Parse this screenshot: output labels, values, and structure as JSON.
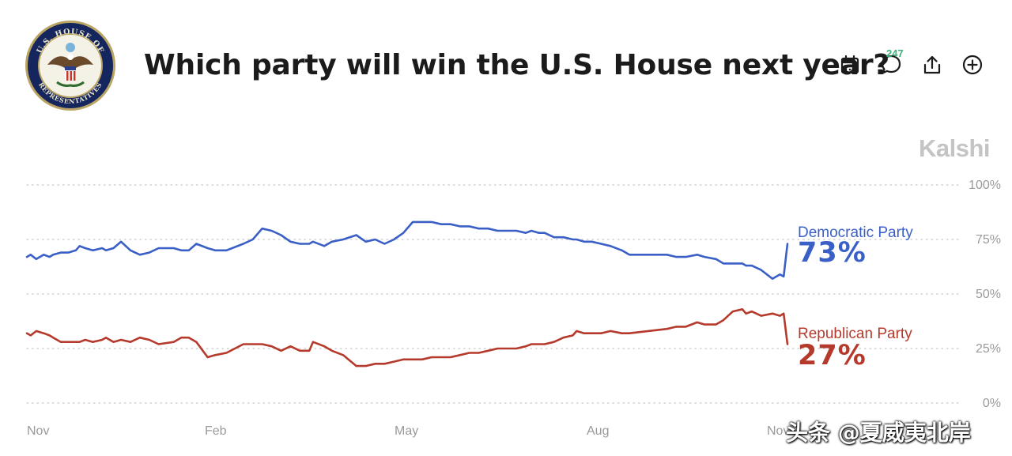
{
  "header": {
    "title": "Which party will win the U.S. House next year?",
    "comment_count": "247",
    "seal_text": "U.S. HOUSE OF REPRESENTATIVES",
    "icons": [
      "calendar-icon",
      "comment-icon",
      "share-icon",
      "add-icon"
    ]
  },
  "brand": "Kalshi",
  "watermark": "头条 @夏威夷北岸",
  "colors": {
    "democratic": "#3a5fc6",
    "republican": "#b53a2c",
    "grid": "#c8c8c8",
    "tick": "#9a9a9a"
  },
  "chart_data": {
    "type": "line",
    "x_ticks": [
      "Nov",
      "Feb",
      "May",
      "Aug",
      "Nov"
    ],
    "y_ticks": [
      "100%",
      "75%",
      "50%",
      "25%",
      "0%"
    ],
    "ylim": [
      0,
      100
    ],
    "x": [
      0,
      2,
      5,
      9,
      12,
      14,
      18,
      22,
      26,
      28,
      31,
      35,
      40,
      42,
      46,
      50,
      55,
      60,
      65,
      70,
      78,
      82,
      86,
      90,
      96,
      100,
      106,
      115,
      120,
      125,
      130,
      135,
      140,
      145,
      150,
      152,
      158,
      162,
      168,
      175,
      180,
      185,
      190,
      195,
      200,
      205,
      210,
      215,
      220,
      225,
      230,
      235,
      240,
      245,
      250,
      255,
      260,
      265,
      268,
      272,
      275,
      280,
      285,
      290,
      292,
      296,
      300,
      305,
      310,
      316,
      320,
      330,
      340,
      345,
      350,
      356,
      360,
      366,
      370,
      375,
      380,
      382,
      385,
      390,
      396,
      400,
      402,
      404
    ],
    "series": [
      {
        "name": "Democratic Party",
        "label": "73%",
        "values": [
          67,
          68,
          66,
          68,
          67,
          68,
          69,
          69,
          70,
          72,
          71,
          70,
          71,
          70,
          71,
          74,
          70,
          68,
          69,
          71,
          71,
          70,
          70,
          73,
          71,
          70,
          70,
          73,
          75,
          80,
          79,
          77,
          74,
          73,
          73,
          74,
          72,
          74,
          75,
          77,
          74,
          75,
          73,
          75,
          78,
          83,
          83,
          83,
          82,
          82,
          81,
          81,
          80,
          80,
          79,
          79,
          79,
          78,
          79,
          78,
          78,
          76,
          76,
          75,
          75,
          74,
          74,
          73,
          72,
          70,
          68,
          68,
          68,
          67,
          67,
          68,
          67,
          66,
          64,
          64,
          64,
          63,
          63,
          61,
          57,
          59,
          58,
          73
        ]
      },
      {
        "name": "Republican Party",
        "label": "27%",
        "values": [
          32,
          31,
          33,
          32,
          31,
          30,
          28,
          28,
          28,
          28,
          29,
          28,
          29,
          30,
          28,
          29,
          28,
          30,
          29,
          27,
          28,
          30,
          30,
          28,
          21,
          22,
          23,
          27,
          27,
          27,
          26,
          24,
          26,
          24,
          24,
          28,
          26,
          24,
          22,
          17,
          17,
          18,
          18,
          19,
          20,
          20,
          20,
          21,
          21,
          21,
          22,
          23,
          23,
          24,
          25,
          25,
          25,
          26,
          27,
          27,
          27,
          28,
          30,
          31,
          33,
          32,
          32,
          32,
          33,
          32,
          32,
          33,
          34,
          35,
          35,
          37,
          36,
          36,
          38,
          42,
          43,
          41,
          42,
          40,
          41,
          40,
          41,
          27
        ]
      }
    ]
  }
}
